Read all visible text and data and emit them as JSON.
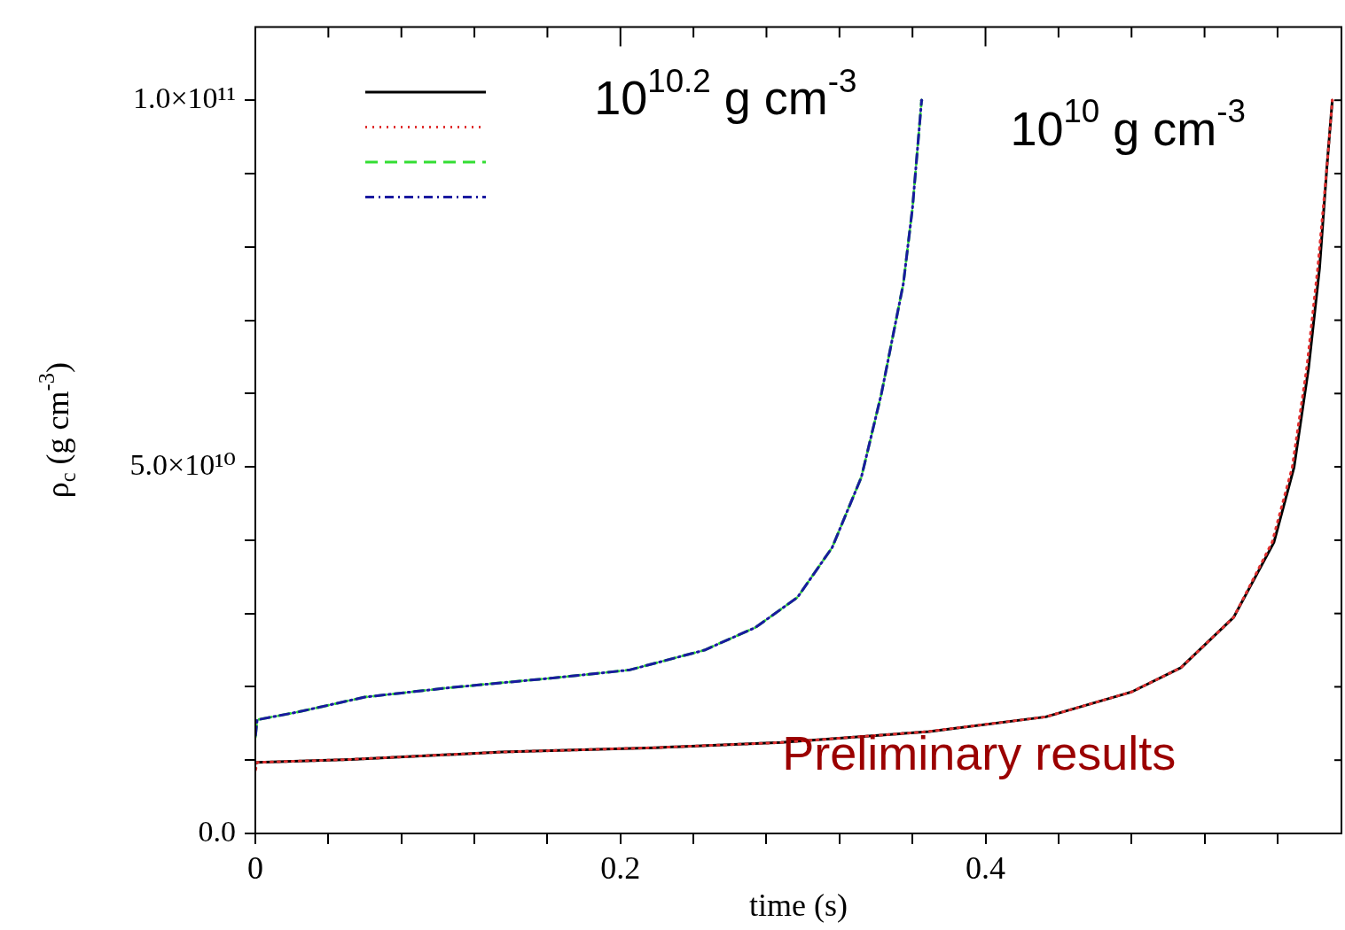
{
  "chart_data": {
    "type": "line",
    "xlabel": "time (s)",
    "ylabel": "ρ$_{c}$ (g cm$^{-3}$)",
    "xlim": [
      0,
      0.595
    ],
    "ylim": [
      0,
      110000000000.0
    ],
    "xticks": [
      {
        "value": 0,
        "label": "0"
      },
      {
        "value": 0.04,
        "label": null
      },
      {
        "value": 0.08,
        "label": null
      },
      {
        "value": 0.12,
        "label": null
      },
      {
        "value": 0.16,
        "label": null
      },
      {
        "value": 0.2,
        "label": "0.2"
      },
      {
        "value": 0.24,
        "label": null
      },
      {
        "value": 0.28,
        "label": null
      },
      {
        "value": 0.32,
        "label": null
      },
      {
        "value": 0.36,
        "label": null
      },
      {
        "value": 0.4,
        "label": "0.4"
      },
      {
        "value": 0.44,
        "label": null
      },
      {
        "value": 0.48,
        "label": null
      },
      {
        "value": 0.52,
        "label": null
      },
      {
        "value": 0.56,
        "label": null
      }
    ],
    "yticks": [
      {
        "value": 0,
        "label": "0.0"
      },
      {
        "value": 10000000000.0,
        "label": null
      },
      {
        "value": 20000000000.0,
        "label": null
      },
      {
        "value": 30000000000.0,
        "label": null
      },
      {
        "value": 40000000000.0,
        "label": null
      },
      {
        "value": 50000000000.0,
        "label": "5.0×10¹⁰"
      },
      {
        "value": 60000000000.0,
        "label": null
      },
      {
        "value": 70000000000.0,
        "label": null
      },
      {
        "value": 80000000000.0,
        "label": null
      },
      {
        "value": 90000000000.0,
        "label": null
      },
      {
        "value": 100000000000.0,
        "label": "1.0×10¹¹"
      }
    ],
    "marker": "none",
    "series": [
      {
        "color": "#000000",
        "line_style": "solid",
        "x": [
          0,
          0.001,
          0.052,
          0.135,
          0.219,
          0.288,
          0.369,
          0.433,
          0.48,
          0.507,
          0.536,
          0.558,
          0.569,
          0.577,
          0.583,
          0.587,
          0.59
        ],
        "values": [
          9500000000.0,
          9700000000.0,
          10100000000.0,
          11100000000.0,
          11700000000.0,
          12400000000.0,
          13900000000.0,
          15900000000.0,
          19300000000.0,
          22600000000.0,
          29500000000.0,
          39700000000.0,
          49900000000.0,
          63500000000.0,
          77100000000.0,
          90800000000.0,
          100000000000.0
        ]
      },
      {
        "color": "#e03030",
        "line_style": "dotted",
        "x": [
          0,
          0.001,
          0.052,
          0.135,
          0.219,
          0.288,
          0.369,
          0.433,
          0.48,
          0.507,
          0.536,
          0.557,
          0.568,
          0.576,
          0.582,
          0.587,
          0.59
        ],
        "values": [
          8500000000.0,
          9700000000.0,
          10100000000.0,
          11100000000.0,
          11700000000.0,
          12400000000.0,
          13900000000.0,
          15900000000.0,
          19300000000.0,
          22600000000.0,
          29500000000.0,
          39700000000.0,
          49900000000.0,
          63500000000.0,
          77100000000.0,
          90800000000.0,
          100000000000.0
        ]
      },
      {
        "color": "#33dd33",
        "line_style": "dashed",
        "x": [
          0,
          0.001,
          0.024,
          0.06,
          0.107,
          0.163,
          0.205,
          0.246,
          0.274,
          0.297,
          0.316,
          0.332,
          0.343,
          0.355,
          0.36,
          0.365
        ],
        "values": [
          13100000000.0,
          15500000000.0,
          16600000000.0,
          18600000000.0,
          19900000000.0,
          21200000000.0,
          22300000000.0,
          25000000000.0,
          28100000000.0,
          32200000000.0,
          39000000000.0,
          48600000000.0,
          60000000000.0,
          75000000000.0,
          85300000000.0,
          100000000000.0
        ]
      },
      {
        "color": "#1a1aa0",
        "line_style": "dashdot",
        "x": [
          0,
          0.001,
          0.024,
          0.06,
          0.107,
          0.163,
          0.205,
          0.246,
          0.274,
          0.297,
          0.316,
          0.332,
          0.343,
          0.355,
          0.36,
          0.365
        ],
        "values": [
          13100000000.0,
          15500000000.0,
          16600000000.0,
          18600000000.0,
          19900000000.0,
          21200000000.0,
          22300000000.0,
          25000000000.0,
          28100000000.0,
          32200000000.0,
          39000000000.0,
          48600000000.0,
          60000000000.0,
          75000000000.0,
          85300000000.0,
          100000000000.0
        ]
      }
    ],
    "annotations": [
      "10$^{10.2}$ g cm$^{-3}$",
      "10$^{10}$ g cm$^{-3}$",
      "Preliminary results"
    ]
  }
}
